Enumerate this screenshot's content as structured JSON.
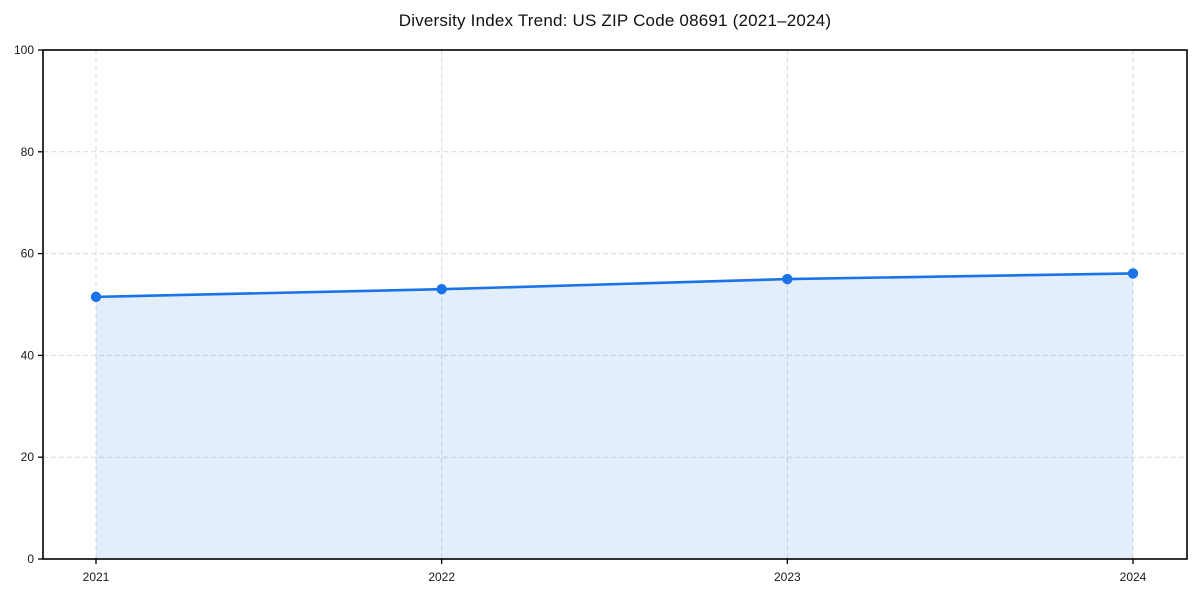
{
  "chart_data": {
    "type": "area",
    "title": "Diversity Index Trend: US ZIP Code 08691 (2021–2024)",
    "xlabel": "",
    "ylabel": "",
    "x": [
      2021,
      2022,
      2023,
      2024
    ],
    "x_tick_labels": [
      "2021",
      "2022",
      "2023",
      "2024"
    ],
    "series": [
      {
        "name": "Diversity Index",
        "values": [
          51.5,
          53.0,
          55.0,
          56.1
        ]
      }
    ],
    "ylim": [
      0,
      100
    ],
    "yticks": [
      0,
      20,
      40,
      60,
      80,
      100
    ],
    "grid": "on",
    "grid_style": "dashed",
    "legend_position": "none",
    "colors": {
      "line": "#1a73e8",
      "marker": "#1a73e8",
      "fill": "rgba(26,115,232,0.12)",
      "grid": "#d9d9d9",
      "spine": "#000000",
      "tick_label": "#1a1a1a",
      "title": "#111111"
    }
  }
}
